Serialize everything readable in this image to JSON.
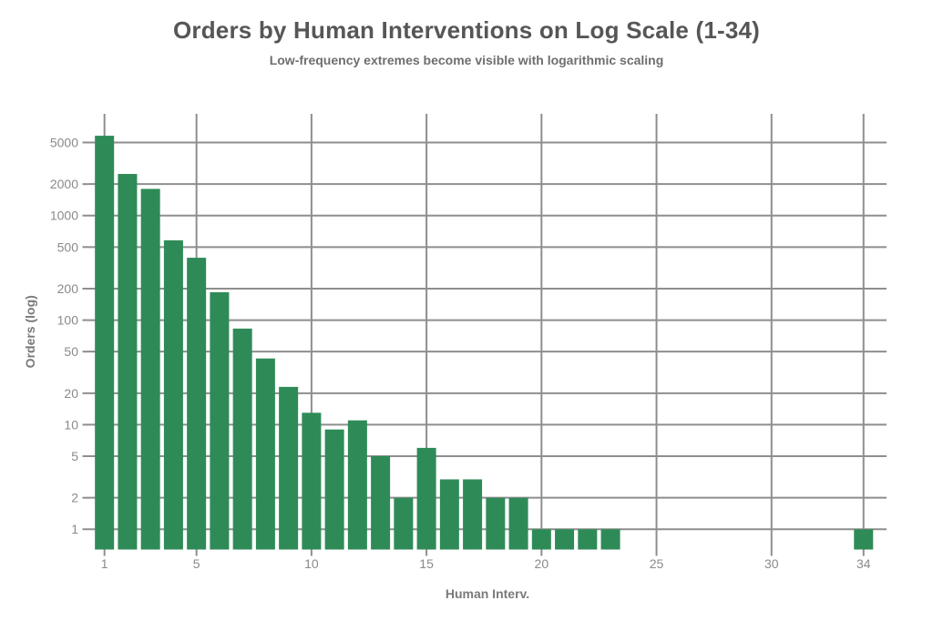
{
  "chart_data": {
    "type": "bar",
    "title": "Orders by Human Interventions on Log Scale (1-34)",
    "subtitle": "Low-frequency extremes become visible with logarithmic scaling",
    "xlabel": "Human Interv.",
    "ylabel": "Orders (log)",
    "y_scale": "log10",
    "x": [
      1,
      2,
      3,
      4,
      5,
      6,
      7,
      8,
      9,
      10,
      11,
      12,
      13,
      14,
      15,
      16,
      17,
      18,
      19,
      20,
      21,
      22,
      23,
      34
    ],
    "values": [
      5800,
      2500,
      1800,
      580,
      395,
      185,
      83,
      43,
      23,
      13,
      9,
      11,
      5,
      2,
      6,
      3,
      3,
      2,
      2,
      1,
      1,
      1,
      1,
      1
    ],
    "x_ticks": [
      1,
      5,
      10,
      15,
      20,
      25,
      30,
      34
    ],
    "y_ticks": [
      1,
      2,
      5,
      10,
      20,
      50,
      100,
      200,
      500,
      1000,
      2000,
      5000
    ],
    "xlim": [
      0.3,
      35.0
    ],
    "ylim": [
      0.64,
      9400
    ],
    "grid": true,
    "legend_position": "none",
    "colors": {
      "bar": "#2e8b57",
      "grid": "#8e8e8e",
      "tick_label": "#8a8a8a",
      "axis_label": "#7a7a7a",
      "title": "#565656",
      "subtitle": "#6e6e6e",
      "background": "#ffffff"
    }
  }
}
